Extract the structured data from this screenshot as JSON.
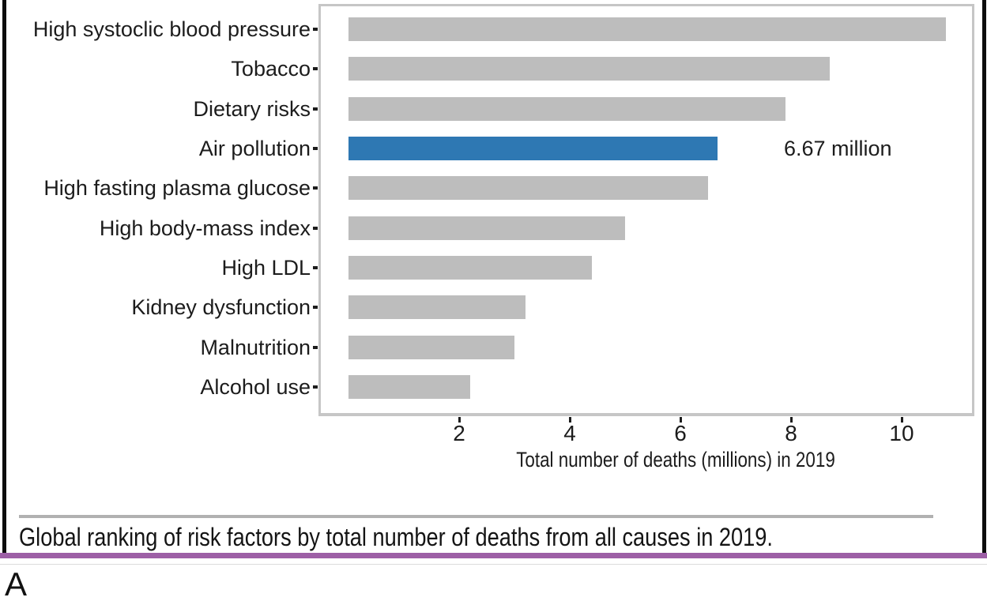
{
  "figure_label": "A",
  "caption": "Global ranking of risk factors by total number of deaths from all causes in 2019.",
  "colors": {
    "bar_default": "#bdbdbd",
    "bar_highlight": "#2e78b3",
    "panel_border": "#c6c6c6",
    "caption_rule": "#b1b1b1",
    "purple_divider": "#9d5fa6",
    "text": "#1c1c1c"
  },
  "chart_data": {
    "type": "bar",
    "orientation": "horizontal",
    "title": "",
    "xlabel": "Total number of deaths (millions) in 2019",
    "ylabel": "",
    "categories": [
      "High systoclic blood pressure",
      "Tobacco",
      "Dietary risks",
      "Air pollution",
      "High fasting plasma glucose",
      "High body-mass index",
      "High LDL",
      "Kidney dysfunction",
      "Malnutrition",
      "Alcohol use"
    ],
    "values": [
      10.8,
      8.7,
      7.9,
      6.67,
      6.5,
      5.0,
      4.4,
      3.2,
      3.0,
      2.2
    ],
    "highlighted_category": "Air pollution",
    "bar_label": {
      "category": "Air pollution",
      "text": "6.67 million"
    },
    "xticks": [
      2,
      4,
      6,
      8,
      10
    ],
    "xlim": [
      0,
      11.3
    ],
    "grid": false,
    "legend": false
  }
}
